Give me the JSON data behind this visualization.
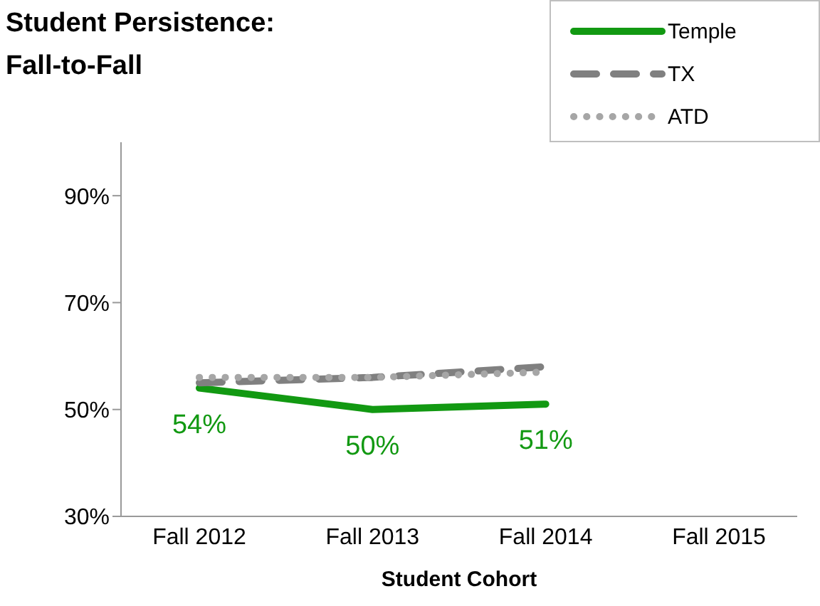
{
  "chart_data": {
    "type": "line",
    "title": "Student Persistence:\nFall-to-Fall",
    "xlabel": "Student Cohort",
    "categories": [
      "Fall 2012",
      "Fall 2013",
      "Fall 2014",
      "Fall 2015"
    ],
    "series": [
      {
        "name": "Temple",
        "color": "#129912",
        "values": [
          54,
          50,
          51,
          null
        ],
        "value_labels": [
          "54%",
          "50%",
          "51%",
          null
        ],
        "line_style": "solid"
      },
      {
        "name": "TX",
        "color": "#808080",
        "values": [
          55,
          56,
          58,
          null
        ],
        "line_style": "dashed"
      },
      {
        "name": "ATD",
        "color": "#a6a6a6",
        "values": [
          56,
          56,
          57,
          null
        ],
        "line_style": "dotted"
      }
    ],
    "ylim": [
      30,
      100
    ],
    "yticks": [
      {
        "value": 30,
        "label": "30%"
      },
      {
        "value": 50,
        "label": "50%"
      },
      {
        "value": 70,
        "label": "70%"
      },
      {
        "value": 90,
        "label": "90%"
      }
    ],
    "grid": false,
    "legend": "top right",
    "marker": "none"
  }
}
